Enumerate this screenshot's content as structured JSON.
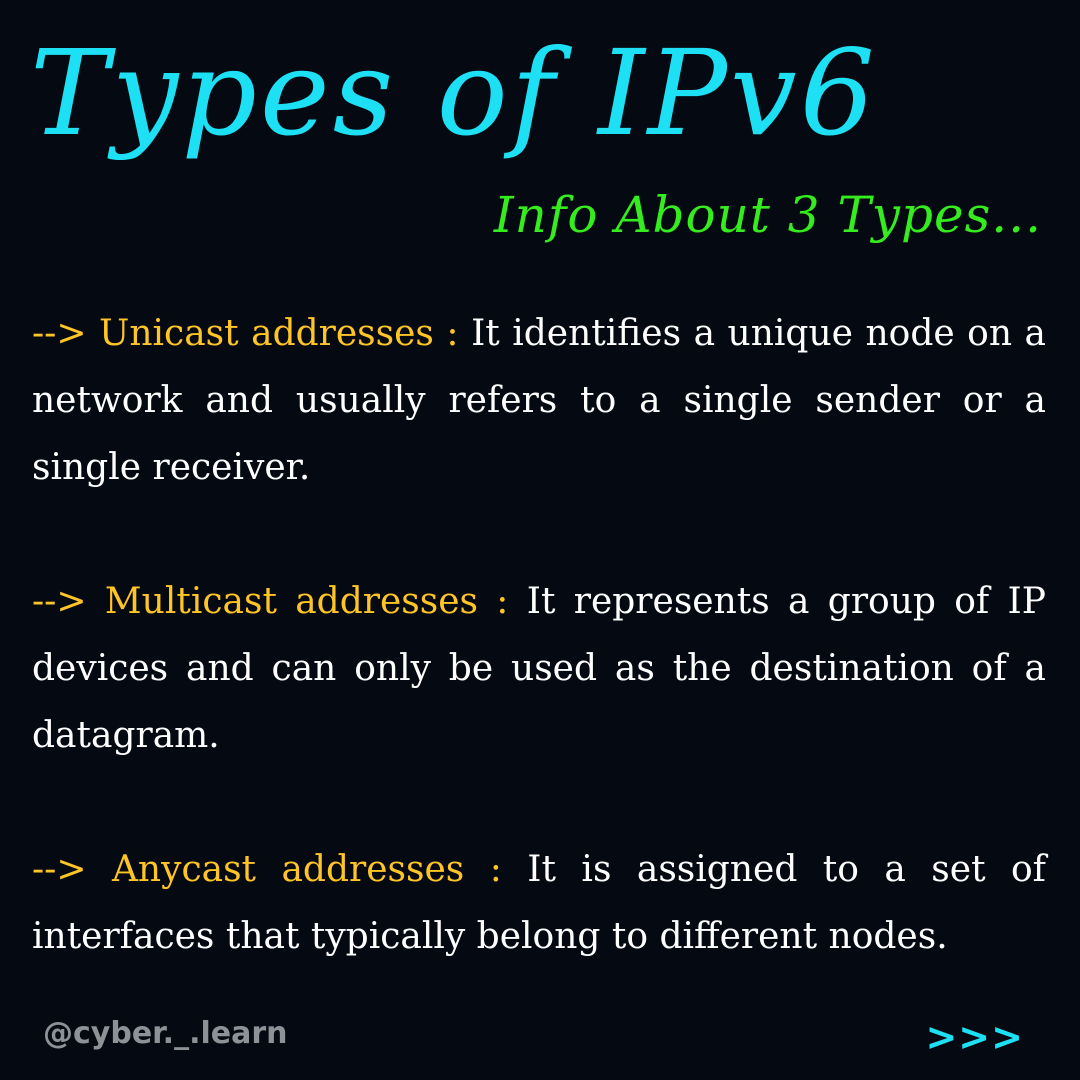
{
  "header": {
    "title": "Types of IPv6",
    "subtitle": "Info About 3 Types..."
  },
  "items": [
    {
      "prefix": "--> ",
      "term": "Unicast addresses :",
      "description": "It identifies a unique node on a network and usually refers to a single sender or a single receiver."
    },
    {
      "prefix": "--> ",
      "term": "Multicast addresses :",
      "description": "It represents a group of IP devices and can only be used as the destination of a datagram."
    },
    {
      "prefix": "--> ",
      "term": "Anycast addresses :",
      "description": "It is assigned to a set of interfaces that typically belong to different nodes."
    }
  ],
  "footer": {
    "handle": "@cyber._.learn",
    "next_indicator": ">>>"
  },
  "colors": {
    "background": "#050a12",
    "title": "#1ee0f5",
    "subtitle": "#35ec1e",
    "term": "#ffc425",
    "body_text": "#ffffff",
    "handle": "#8e9196",
    "next_indicator": "#1ee0f5"
  }
}
